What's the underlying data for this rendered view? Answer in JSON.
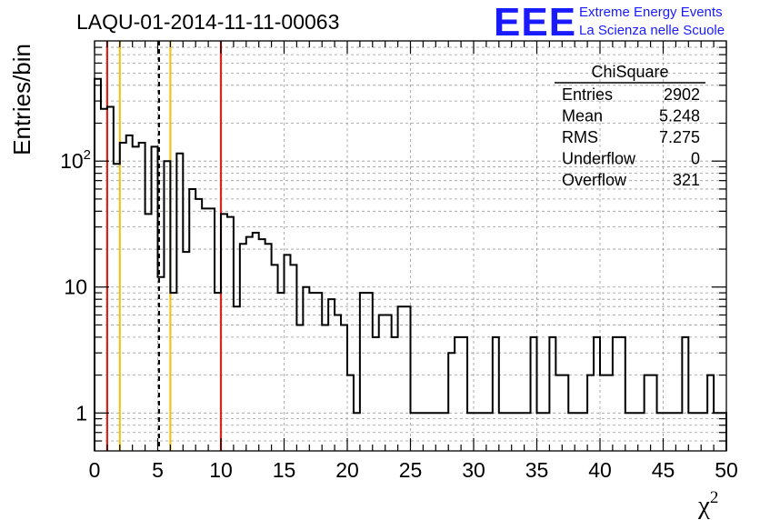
{
  "chart_data": {
    "type": "histogram",
    "title": "LAQU-01-2014-11-11-00063",
    "xlabel": "χ",
    "xlabel_sup": "2",
    "ylabel": "Entries/bin",
    "xlim": [
      0,
      50
    ],
    "ylim": [
      0.5,
      900
    ],
    "y_scale": "log",
    "grid": true,
    "bin_width": 0.5,
    "x_ticks": [
      "0",
      "5",
      "10",
      "15",
      "20",
      "25",
      "30",
      "35",
      "40",
      "45",
      "50"
    ],
    "y_ticks": [
      {
        "value": 1,
        "label": "1"
      },
      {
        "value": 10,
        "label": "10"
      },
      {
        "value": 100,
        "label": "10",
        "sup": "2"
      }
    ],
    "values": [
      450,
      260,
      270,
      95,
      140,
      160,
      130,
      140,
      38,
      130,
      12,
      100,
      9,
      115,
      19,
      60,
      50,
      42,
      42,
      9,
      38,
      36,
      7,
      22,
      25,
      27,
      24,
      22,
      15,
      9,
      18,
      15,
      5,
      10,
      9,
      9,
      5,
      8,
      6,
      5,
      2,
      1,
      9,
      9,
      4,
      6,
      6,
      4,
      7,
      7,
      1,
      1,
      1,
      1,
      1,
      1,
      3,
      4,
      4,
      1,
      1,
      1,
      1,
      4,
      1,
      1,
      1,
      1,
      1,
      4,
      1,
      1,
      4,
      2,
      2,
      1,
      1,
      1,
      2,
      4,
      2,
      2,
      4,
      4,
      1,
      1,
      1,
      2,
      2,
      1,
      1,
      1,
      1,
      4,
      1,
      1,
      1,
      2,
      1,
      1
    ],
    "vlines": [
      {
        "x": 1,
        "color": "#e0201b",
        "style": "solid"
      },
      {
        "x": 2,
        "color": "#f2c31a",
        "style": "solid"
      },
      {
        "x": 5.1,
        "color": "#000000",
        "style": "dashed"
      },
      {
        "x": 6,
        "color": "#f2c31a",
        "style": "solid"
      },
      {
        "x": 10,
        "color": "#e0201b",
        "style": "solid"
      }
    ],
    "stats": {
      "title": "ChiSquare",
      "rows": [
        {
          "label": "Entries",
          "value": "2902"
        },
        {
          "label": "Mean",
          "value": "5.248"
        },
        {
          "label": "RMS",
          "value": "7.275"
        },
        {
          "label": "Underflow",
          "value": "0"
        },
        {
          "label": "Overflow",
          "value": "321"
        }
      ]
    }
  },
  "logo": {
    "mark": "EEE",
    "line1": "Extreme Energy Events",
    "line2": "La Scienza nelle Scuole",
    "color": "#1a1aff"
  }
}
